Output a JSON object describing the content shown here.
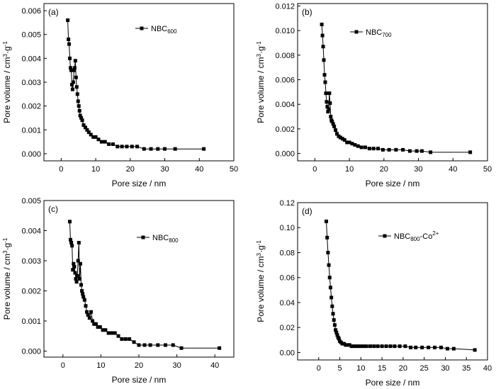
{
  "chart_data": [
    {
      "type": "line",
      "panel_label": "(a)",
      "xlabel": "Pore size / nm",
      "ylabel": "Pore volume / cm3·g-1",
      "xlim": [
        -5,
        50
      ],
      "ylim": [
        -0.0003,
        0.0063
      ],
      "xticks": [
        0,
        10,
        20,
        30,
        40,
        50
      ],
      "yticks": [
        0.0,
        0.001,
        0.002,
        0.003,
        0.004,
        0.005,
        0.006
      ],
      "ytick_labels": [
        "0.000",
        "0.001",
        "0.002",
        "0.003",
        "0.004",
        "0.005",
        "0.006"
      ],
      "legend": {
        "base": "NBC",
        "sub": "600",
        "sup": "",
        "suffix": "",
        "position": "top-right"
      },
      "series": [
        {
          "x": [
            1.9,
            2.1,
            2.3,
            2.5,
            2.7,
            2.9,
            3.1,
            3.3,
            3.5,
            3.7,
            3.9,
            4.1,
            4.3,
            4.5,
            4.7,
            4.9,
            5.1,
            5.3,
            5.5,
            5.8,
            6.1,
            6.5,
            7.0,
            7.5,
            8.0,
            8.6,
            9.3,
            10.0,
            10.8,
            11.7,
            12.7,
            13.8,
            15.0,
            16.3,
            17.6,
            19.0,
            20.5,
            22.0,
            24.0,
            26.0,
            28.0,
            30.0,
            33.0,
            41.3
          ],
          "y": [
            0.0056,
            0.0048,
            0.0046,
            0.004,
            0.0036,
            0.0035,
            0.0029,
            0.0027,
            0.003,
            0.0035,
            0.0036,
            0.0039,
            0.0032,
            0.0028,
            0.0025,
            0.0022,
            0.002,
            0.0018,
            0.0016,
            0.0015,
            0.0014,
            0.0012,
            0.0011,
            0.001,
            0.0009,
            0.0008,
            0.0007,
            0.0007,
            0.0006,
            0.0005,
            0.0005,
            0.0004,
            0.0004,
            0.0003,
            0.0003,
            0.0003,
            0.0003,
            0.0003,
            0.0002,
            0.0002,
            0.0002,
            0.0002,
            0.0002,
            0.0002
          ]
        }
      ]
    },
    {
      "type": "line",
      "panel_label": "(b)",
      "xlabel": "Pore size / nm",
      "ylabel": "Pore volume / cm3·g-1",
      "xlim": [
        -5,
        50
      ],
      "ylim": [
        -0.0006,
        0.0122
      ],
      "xticks": [
        0,
        10,
        20,
        30,
        40,
        50
      ],
      "yticks": [
        0.0,
        0.002,
        0.004,
        0.006,
        0.008,
        0.01,
        0.012
      ],
      "ytick_labels": [
        "0.000",
        "0.002",
        "0.004",
        "0.006",
        "0.008",
        "0.010",
        "0.012"
      ],
      "legend": {
        "base": "NBC",
        "sub": "700",
        "sup": "",
        "suffix": "",
        "position": "top-right"
      },
      "series": [
        {
          "x": [
            2.0,
            2.2,
            2.4,
            2.6,
            2.8,
            3.0,
            3.2,
            3.4,
            3.6,
            3.8,
            4.0,
            4.2,
            4.4,
            4.6,
            4.8,
            5.0,
            5.3,
            5.6,
            6.0,
            6.4,
            6.9,
            7.4,
            8.0,
            8.6,
            9.3,
            10.0,
            10.8,
            11.6,
            12.5,
            13.5,
            14.6,
            15.8,
            17.0,
            18.3,
            19.7,
            21.5,
            23.5,
            25.5,
            27.5,
            29.5,
            31.0,
            33.5,
            45.0
          ],
          "y": [
            0.0105,
            0.0096,
            0.0087,
            0.0076,
            0.0064,
            0.0058,
            0.0049,
            0.0042,
            0.0038,
            0.0034,
            0.0036,
            0.0049,
            0.0041,
            0.003,
            0.0027,
            0.0026,
            0.0024,
            0.0022,
            0.0019,
            0.0016,
            0.0014,
            0.0013,
            0.0012,
            0.0011,
            0.0009,
            0.0009,
            0.0008,
            0.0007,
            0.0006,
            0.0005,
            0.0005,
            0.0004,
            0.0004,
            0.0004,
            0.0003,
            0.0003,
            0.0003,
            0.0003,
            0.0002,
            0.0002,
            0.0002,
            0.0001,
            0.0001
          ]
        }
      ]
    },
    {
      "type": "line",
      "panel_label": "(c)",
      "xlabel": "Pore size / nm",
      "ylabel": "Pore volume / cm3·g-1",
      "xlim": [
        -5,
        45
      ],
      "ylim": [
        -0.0002,
        0.005
      ],
      "xticks": [
        0,
        10,
        20,
        30,
        40
      ],
      "yticks": [
        0.0,
        0.001,
        0.002,
        0.003,
        0.004,
        0.005
      ],
      "ytick_labels": [
        "0.000",
        "0.001",
        "0.002",
        "0.003",
        "0.004",
        "0.005"
      ],
      "legend": {
        "base": "NBC",
        "sub": "800",
        "sup": "",
        "suffix": "",
        "position": "top-right"
      },
      "series": [
        {
          "x": [
            1.8,
            2.0,
            2.2,
            2.4,
            2.6,
            2.8,
            3.0,
            3.2,
            3.4,
            3.6,
            3.8,
            4.0,
            4.2,
            4.4,
            4.6,
            4.8,
            5.0,
            5.2,
            5.4,
            5.7,
            6.0,
            6.3,
            6.6,
            7.0,
            7.4,
            7.8,
            8.2,
            8.7,
            9.2,
            9.8,
            10.5,
            11.2,
            12.0,
            12.8,
            13.7,
            14.6,
            15.5,
            16.5,
            17.5,
            18.7,
            20.0,
            21.5,
            23.0,
            25.0,
            27.0,
            29.0,
            31.2,
            41.2
          ],
          "y": [
            0.0043,
            0.0037,
            0.0036,
            0.0035,
            0.0027,
            0.0029,
            0.0028,
            0.0026,
            0.0024,
            0.0023,
            0.0025,
            0.003,
            0.0036,
            0.0024,
            0.0029,
            0.0022,
            0.002,
            0.0019,
            0.0018,
            0.0017,
            0.0015,
            0.0013,
            0.0012,
            0.0011,
            0.0013,
            0.001,
            0.0009,
            0.0009,
            0.0008,
            0.0008,
            0.0007,
            0.0007,
            0.0006,
            0.0006,
            0.0006,
            0.0005,
            0.0004,
            0.0004,
            0.0004,
            0.0003,
            0.0002,
            0.0002,
            0.0002,
            0.0002,
            0.0002,
            0.0002,
            0.0001,
            0.0001
          ]
        }
      ]
    },
    {
      "type": "line",
      "panel_label": "(d)",
      "xlabel": "Pore size / nm",
      "ylabel": "Pore volume / cm3·g-1",
      "xlim": [
        -5,
        40
      ],
      "ylim": [
        -0.006,
        0.12
      ],
      "xticks": [
        0,
        5,
        10,
        15,
        20,
        25,
        30,
        35,
        40
      ],
      "yticks": [
        0.0,
        0.02,
        0.04,
        0.06,
        0.08,
        0.1,
        0.12
      ],
      "ytick_labels": [
        "0.00",
        "0.02",
        "0.04",
        "0.06",
        "0.08",
        "0.10",
        "0.12"
      ],
      "legend": {
        "base": "NBC",
        "sub": "800",
        "sup": "2+",
        "suffix": "-Co",
        "position": "top-right"
      },
      "series": [
        {
          "x": [
            1.8,
            2.0,
            2.2,
            2.4,
            2.6,
            2.8,
            3.0,
            3.2,
            3.4,
            3.6,
            3.8,
            4.0,
            4.2,
            4.4,
            4.6,
            4.8,
            5.0,
            5.3,
            5.6,
            6.0,
            6.4,
            6.8,
            7.3,
            7.8,
            8.4,
            9.0,
            9.7,
            10.5,
            11.3,
            12.2,
            13.1,
            14.0,
            15.0,
            16.0,
            17.0,
            18.0,
            19.2,
            20.5,
            21.8,
            23.0,
            24.5,
            26.0,
            27.5,
            29.0,
            30.5,
            32.0,
            37.0
          ],
          "y": [
            0.105,
            0.092,
            0.08,
            0.07,
            0.06,
            0.052,
            0.044,
            0.037,
            0.031,
            0.026,
            0.022,
            0.018,
            0.016,
            0.014,
            0.012,
            0.011,
            0.009,
            0.008,
            0.007,
            0.007,
            0.006,
            0.006,
            0.006,
            0.005,
            0.005,
            0.005,
            0.005,
            0.005,
            0.005,
            0.005,
            0.005,
            0.005,
            0.005,
            0.005,
            0.005,
            0.005,
            0.005,
            0.005,
            0.004,
            0.004,
            0.004,
            0.004,
            0.004,
            0.004,
            0.003,
            0.003,
            0.002
          ]
        }
      ]
    }
  ]
}
